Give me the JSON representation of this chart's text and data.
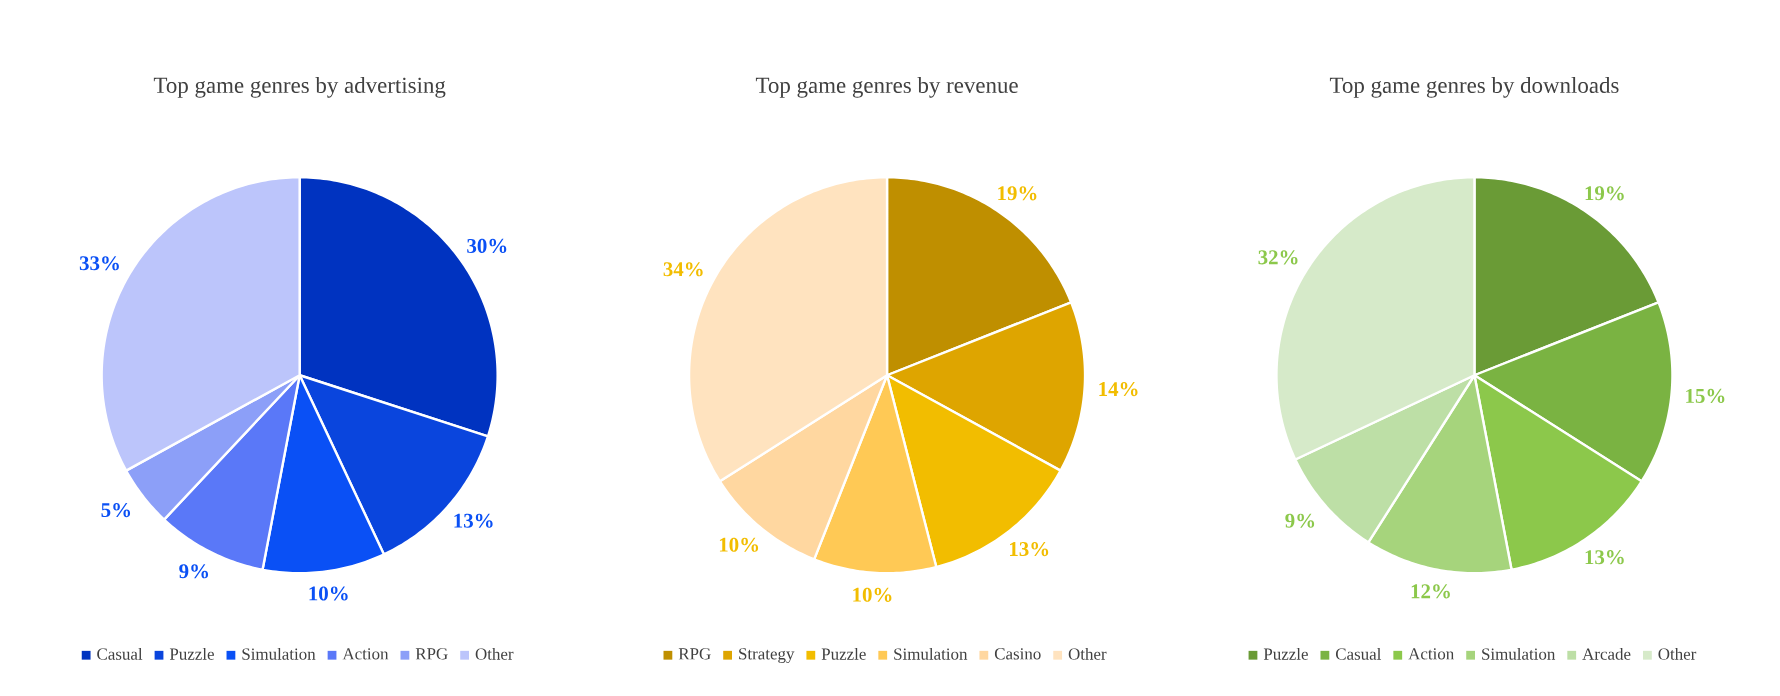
{
  "chart_data": [
    {
      "type": "pie",
      "title": "Top game genres by advertising",
      "categories": [
        "Casual",
        "Puzzle",
        "Simulation",
        "Action",
        "RPG",
        "Other"
      ],
      "values": [
        30,
        13,
        10,
        9,
        5,
        33
      ],
      "value_labels": [
        "30%",
        "13%",
        "10%",
        "9%",
        "5%",
        "33%"
      ],
      "colors": [
        "#0033c0",
        "#0a45dd",
        "#0a50f5",
        "#5a78f8",
        "#8c9ff8",
        "#bcc5fb"
      ],
      "legend": "bottom"
    },
    {
      "type": "pie",
      "title": "Top game genres by revenue",
      "categories": [
        "RPG",
        "Strategy",
        "Puzzle",
        "Simulation",
        "Casino",
        "Other"
      ],
      "values": [
        19,
        14,
        13,
        10,
        10,
        34
      ],
      "value_labels": [
        "19%",
        "14%",
        "13%",
        "10%",
        "10%",
        "34%"
      ],
      "colors": [
        "#bf8f00",
        "#dea500",
        "#f2bd00",
        "#ffc955",
        "#ffd7a0",
        "#ffe3bf"
      ],
      "legend": "bottom"
    },
    {
      "type": "pie",
      "title": "Top game genres by downloads",
      "categories": [
        "Puzzle",
        "Casual",
        "Action",
        "Simulation",
        "Arcade",
        "Other"
      ],
      "values": [
        19,
        15,
        13,
        12,
        9,
        32
      ],
      "value_labels": [
        "19%",
        "15%",
        "13%",
        "12%",
        "9%",
        "32%"
      ],
      "colors": [
        "#6a9b36",
        "#7ab342",
        "#8cc84b",
        "#a6d47c",
        "#bddfa6",
        "#d6eac9"
      ],
      "legend": "bottom"
    }
  ]
}
